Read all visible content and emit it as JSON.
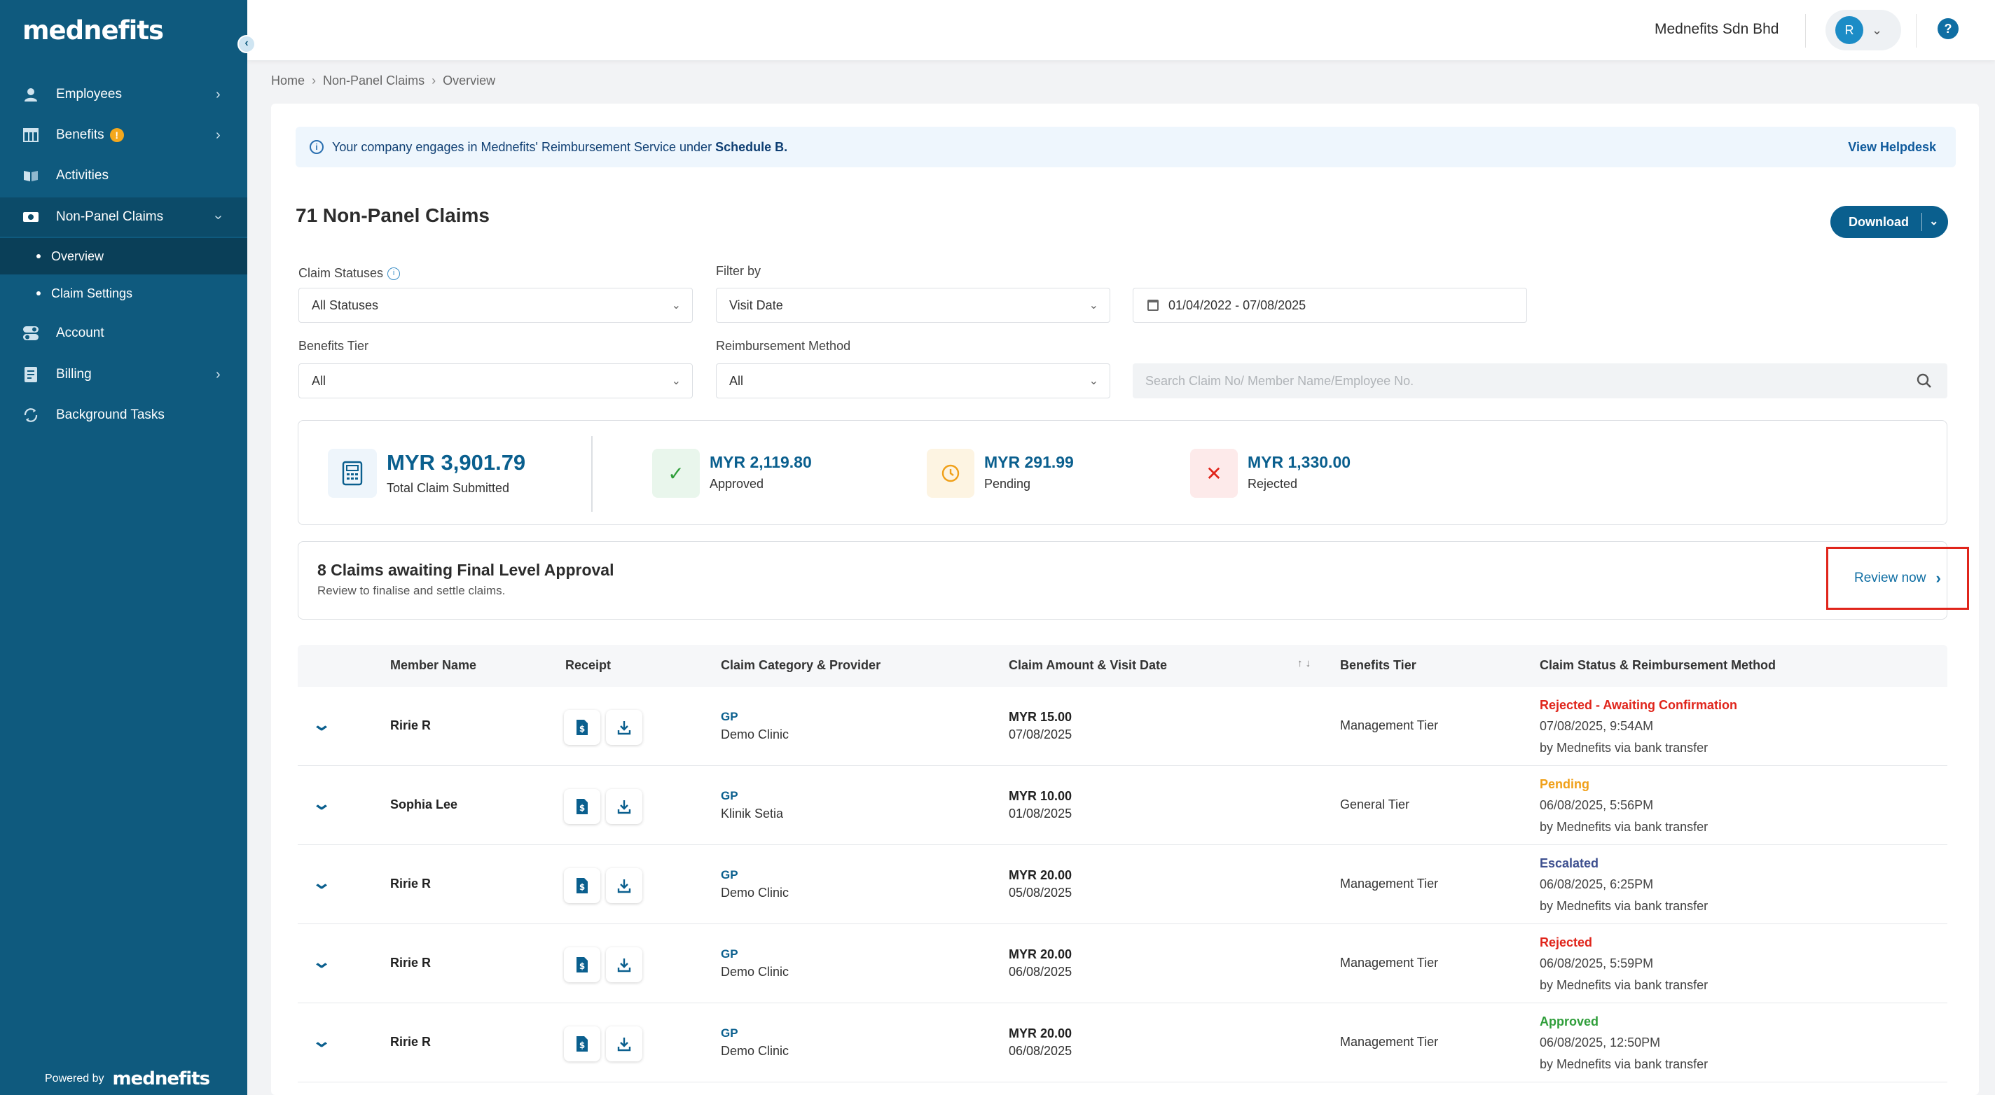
{
  "brand": {
    "logo_text": "mednefits",
    "powered_by": "Powered by"
  },
  "sidebar": {
    "items": [
      {
        "label": "Employees",
        "icon": "user-icon"
      },
      {
        "label": "Benefits",
        "icon": "table-icon",
        "badge": "!"
      },
      {
        "label": "Activities",
        "icon": "book-icon"
      },
      {
        "label": "Non-Panel Claims",
        "icon": "receipt-icon"
      },
      {
        "label": "Account",
        "icon": "toggle-icon"
      },
      {
        "label": "Billing",
        "icon": "bill-icon"
      },
      {
        "label": "Background Tasks",
        "icon": "refresh-icon"
      }
    ],
    "subitems": [
      {
        "label": "Overview"
      },
      {
        "label": "Claim Settings"
      }
    ]
  },
  "topbar": {
    "company": "Mednefits Sdn Bhd",
    "avatar_initial": "R",
    "help": "?"
  },
  "breadcrumb": [
    "Home",
    "Non-Panel Claims",
    "Overview"
  ],
  "banner": {
    "text": "Your company engages in Mednefits' Reimbursement Service under",
    "schedule": "Schedule B.",
    "link": "View Helpdesk"
  },
  "page": {
    "title": "71 Non-Panel Claims",
    "download_label": "Download"
  },
  "filters": {
    "claim_statuses": {
      "label": "Claim Statuses",
      "value": "All Statuses"
    },
    "filter_by": {
      "label": "Filter by",
      "value": "Visit Date"
    },
    "date_range": "01/04/2022 - 07/08/2025",
    "benefits_tier": {
      "label": "Benefits Tier",
      "value": "All"
    },
    "reimbursement_method": {
      "label": "Reimbursement Method",
      "value": "All"
    },
    "search_placeholder": "Search Claim No/ Member Name/Employee No."
  },
  "summary": {
    "total_value": "MYR 3,901.79",
    "total_label": "Total Claim Submitted",
    "approved_value": "MYR 2,119.80",
    "approved_label": "Approved",
    "pending_value": "MYR 291.99",
    "pending_label": "Pending",
    "rejected_value": "MYR 1,330.00",
    "rejected_label": "Rejected"
  },
  "awaiting": {
    "title": "8 Claims awaiting Final Level Approval",
    "subtitle": "Review to finalise and settle claims.",
    "review_label": "Review now"
  },
  "table": {
    "headers": {
      "member": "Member Name",
      "receipt": "Receipt",
      "category": "Claim Category & Provider",
      "amount": "Claim Amount & Visit Date",
      "tier": "Benefits Tier",
      "status": "Claim Status & Reimbursement Method"
    },
    "rows": [
      {
        "member": "Ririe R",
        "category": "GP",
        "provider": "Demo Clinic",
        "amount": "MYR 15.00",
        "visit_date": "07/08/2025",
        "tier": "Management Tier",
        "status": "Rejected - Awaiting Confirmation",
        "status_color": "#e0251b",
        "time": "07/08/2025, 9:54AM",
        "method": "by Mednefits via bank transfer"
      },
      {
        "member": "Sophia Lee",
        "category": "GP",
        "provider": "Klinik Setia",
        "amount": "MYR 10.00",
        "visit_date": "01/08/2025",
        "tier": "General Tier",
        "status": "Pending",
        "status_color": "#f0a019",
        "time": "06/08/2025, 5:56PM",
        "method": "by Mednefits via bank transfer"
      },
      {
        "member": "Ririe R",
        "category": "GP",
        "provider": "Demo Clinic",
        "amount": "MYR 20.00",
        "visit_date": "05/08/2025",
        "tier": "Management Tier",
        "status": "Escalated",
        "status_color": "#3d4f8f",
        "time": "06/08/2025, 6:25PM",
        "method": "by Mednefits via bank transfer"
      },
      {
        "member": "Ririe R",
        "category": "GP",
        "provider": "Demo Clinic",
        "amount": "MYR 20.00",
        "visit_date": "06/08/2025",
        "tier": "Management Tier",
        "status": "Rejected",
        "status_color": "#e0251b",
        "time": "06/08/2025, 5:59PM",
        "method": "by Mednefits via bank transfer"
      },
      {
        "member": "Ririe R",
        "category": "GP",
        "provider": "Demo Clinic",
        "amount": "MYR 20.00",
        "visit_date": "06/08/2025",
        "tier": "Management Tier",
        "status": "Approved",
        "status_color": "#2f9e3a",
        "time": "06/08/2025, 12:50PM",
        "method": "by Mednefits via bank transfer"
      }
    ]
  }
}
